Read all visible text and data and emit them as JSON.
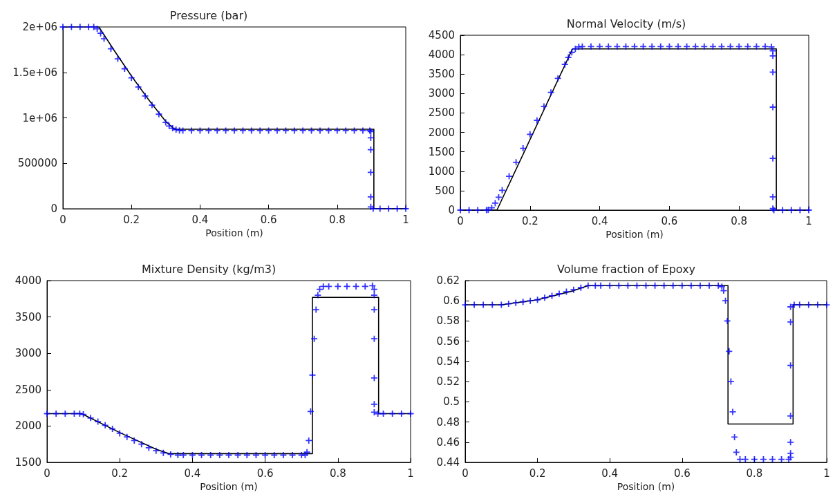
{
  "chart_data": [
    {
      "type": "line",
      "title": "Pressure (bar)",
      "xlabel": "Position (m)",
      "xlim": [
        0,
        1
      ],
      "xticks": [
        0,
        0.2,
        0.4,
        0.6,
        0.8,
        1
      ],
      "ylim": [
        0,
        2000000
      ],
      "yticks": [
        0,
        500000,
        {
          "value": 1000000,
          "label": "1e+06"
        },
        {
          "value": 1500000,
          "label": "1.5e+06"
        },
        {
          "value": 2000000,
          "label": "2e+06"
        }
      ],
      "grid": false,
      "series": [
        {
          "color": "#000000",
          "marker": "none",
          "line_style": "solid",
          "x": [
            0,
            0.105,
            0.15,
            0.2,
            0.25,
            0.3,
            0.325,
            0.907,
            0.907,
            1
          ],
          "values": [
            2000000,
            2000000,
            1740000,
            1460000,
            1200000,
            960000,
            875000,
            875000,
            0,
            0
          ]
        },
        {
          "type": "scatter",
          "color": "#0000ff",
          "marker": "cross",
          "x": [
            0,
            0.025,
            0.05,
            0.075,
            0.09,
            0.1,
            0.11,
            0.12,
            0.14,
            0.16,
            0.18,
            0.2,
            0.22,
            0.24,
            0.26,
            0.28,
            0.3,
            0.31,
            0.32,
            0.33,
            0.34,
            0.35,
            0.375,
            0.4,
            0.425,
            0.45,
            0.475,
            0.5,
            0.525,
            0.55,
            0.575,
            0.6,
            0.625,
            0.65,
            0.675,
            0.7,
            0.725,
            0.75,
            0.775,
            0.8,
            0.825,
            0.85,
            0.875,
            0.895,
            0.898,
            0.898,
            0.898,
            0.898,
            0.898,
            0.898,
            0.905,
            0.925,
            0.95,
            0.975,
            1
          ],
          "values": [
            2000000,
            2000000,
            2000000,
            2000000,
            2000000,
            1980000,
            1930000,
            1870000,
            1760000,
            1650000,
            1540000,
            1440000,
            1340000,
            1240000,
            1140000,
            1040000,
            950000,
            910000,
            885000,
            870000,
            862000,
            860000,
            860000,
            860000,
            860000,
            860000,
            860000,
            860000,
            860000,
            860000,
            860000,
            860000,
            860000,
            860000,
            860000,
            860000,
            860000,
            860000,
            860000,
            860000,
            860000,
            860000,
            860000,
            860000,
            850000,
            780000,
            650000,
            400000,
            130000,
            20000,
            0,
            0,
            0,
            0,
            0
          ]
        }
      ]
    },
    {
      "type": "line",
      "title": "Normal Velocity (m/s)",
      "xlabel": "Position (m)",
      "xlim": [
        0,
        1
      ],
      "xticks": [
        0,
        0.2,
        0.4,
        0.6,
        0.8,
        1
      ],
      "ylim": [
        0,
        4500
      ],
      "yticks": [
        0,
        500,
        1000,
        1500,
        2000,
        2500,
        3000,
        3500,
        4000,
        4500
      ],
      "grid": false,
      "series": [
        {
          "color": "#000000",
          "marker": "none",
          "line_style": "solid",
          "x": [
            0,
            0.105,
            0.322,
            0.907,
            0.907,
            1
          ],
          "values": [
            0,
            0,
            4150,
            4150,
            0,
            0
          ]
        },
        {
          "type": "scatter",
          "color": "#0000ff",
          "marker": "cross",
          "x": [
            0,
            0.025,
            0.05,
            0.075,
            0.08,
            0.09,
            0.1,
            0.11,
            0.12,
            0.14,
            0.16,
            0.18,
            0.2,
            0.22,
            0.24,
            0.26,
            0.28,
            0.3,
            0.31,
            0.32,
            0.33,
            0.34,
            0.35,
            0.375,
            0.4,
            0.425,
            0.45,
            0.475,
            0.5,
            0.525,
            0.55,
            0.575,
            0.6,
            0.625,
            0.65,
            0.675,
            0.7,
            0.725,
            0.75,
            0.775,
            0.8,
            0.825,
            0.85,
            0.875,
            0.893,
            0.897,
            0.897,
            0.897,
            0.897,
            0.897,
            0.897,
            0.897,
            0.9,
            0.925,
            0.95,
            0.975,
            1
          ],
          "values": [
            0,
            0,
            0,
            0,
            10,
            60,
            180,
            330,
            510,
            870,
            1230,
            1590,
            1950,
            2310,
            2670,
            3030,
            3390,
            3750,
            3930,
            4060,
            4150,
            4200,
            4210,
            4210,
            4210,
            4210,
            4210,
            4210,
            4210,
            4210,
            4210,
            4210,
            4210,
            4210,
            4210,
            4210,
            4210,
            4210,
            4210,
            4210,
            4210,
            4210,
            4210,
            4210,
            4200,
            4100,
            3970,
            3550,
            2650,
            1330,
            340,
            40,
            0,
            0,
            0,
            0,
            0
          ]
        }
      ]
    },
    {
      "type": "line",
      "title": "Mixture Density (kg/m3)",
      "xlabel": "Position (m)",
      "xlim": [
        0,
        1
      ],
      "xticks": [
        0,
        0.2,
        0.4,
        0.6,
        0.8,
        1
      ],
      "ylim": [
        1500,
        4000
      ],
      "yticks": [
        1500,
        2000,
        2500,
        3000,
        3500,
        4000
      ],
      "grid": false,
      "series": [
        {
          "color": "#000000",
          "marker": "none",
          "line_style": "solid",
          "x": [
            0,
            0.095,
            0.2,
            0.3,
            0.335,
            0.73,
            0.73,
            0.912,
            0.912,
            1
          ],
          "values": [
            2170,
            2170,
            1910,
            1680,
            1620,
            1620,
            3770,
            3770,
            2170,
            2170
          ]
        },
        {
          "type": "scatter",
          "color": "#0000ff",
          "marker": "cross",
          "x": [
            0,
            0.025,
            0.05,
            0.075,
            0.09,
            0.1,
            0.12,
            0.14,
            0.16,
            0.18,
            0.2,
            0.22,
            0.24,
            0.26,
            0.28,
            0.3,
            0.32,
            0.34,
            0.36,
            0.375,
            0.4,
            0.425,
            0.45,
            0.475,
            0.5,
            0.525,
            0.55,
            0.575,
            0.6,
            0.625,
            0.65,
            0.675,
            0.7,
            0.71,
            0.715,
            0.72,
            0.725,
            0.73,
            0.735,
            0.74,
            0.745,
            0.75,
            0.76,
            0.775,
            0.8,
            0.825,
            0.85,
            0.875,
            0.895,
            0.9,
            0.9,
            0.9,
            0.9,
            0.9,
            0.9,
            0.9,
            0.91,
            0.925,
            0.95,
            0.975,
            1
          ],
          "values": [
            2170,
            2170,
            2170,
            2170,
            2170,
            2160,
            2110,
            2060,
            2010,
            1960,
            1900,
            1850,
            1800,
            1750,
            1700,
            1660,
            1630,
            1610,
            1600,
            1600,
            1600,
            1600,
            1600,
            1600,
            1600,
            1600,
            1600,
            1600,
            1600,
            1600,
            1600,
            1600,
            1600,
            1600,
            1640,
            1800,
            2200,
            2700,
            3200,
            3600,
            3800,
            3880,
            3920,
            3920,
            3920,
            3920,
            3920,
            3920,
            3930,
            3880,
            3800,
            3600,
            3200,
            2660,
            2300,
            2190,
            2170,
            2170,
            2170,
            2170,
            2170
          ]
        }
      ]
    },
    {
      "type": "line",
      "title": "Volume fraction of Epoxy",
      "xlabel": "Position (m)",
      "xlim": [
        0,
        1
      ],
      "xticks": [
        0,
        0.2,
        0.4,
        0.6,
        0.8,
        1
      ],
      "ylim": [
        0.44,
        0.62
      ],
      "yticks": [
        0.44,
        0.46,
        0.48,
        0.5,
        0.52,
        0.54,
        0.56,
        0.58,
        0.6,
        0.62
      ],
      "grid": false,
      "series": [
        {
          "color": "#000000",
          "marker": "none",
          "line_style": "solid",
          "x": [
            0,
            0.1,
            0.2,
            0.3,
            0.34,
            0.727,
            0.727,
            0.907,
            0.907,
            1
          ],
          "values": [
            0.596,
            0.596,
            0.601,
            0.61,
            0.615,
            0.615,
            0.478,
            0.478,
            0.596,
            0.596
          ]
        },
        {
          "type": "scatter",
          "color": "#0000ff",
          "marker": "cross",
          "x": [
            0,
            0.025,
            0.05,
            0.075,
            0.1,
            0.12,
            0.14,
            0.16,
            0.18,
            0.2,
            0.22,
            0.24,
            0.26,
            0.28,
            0.3,
            0.32,
            0.34,
            0.36,
            0.375,
            0.4,
            0.425,
            0.45,
            0.475,
            0.5,
            0.525,
            0.55,
            0.575,
            0.6,
            0.625,
            0.65,
            0.675,
            0.7,
            0.71,
            0.715,
            0.72,
            0.725,
            0.73,
            0.735,
            0.74,
            0.745,
            0.75,
            0.76,
            0.775,
            0.8,
            0.825,
            0.85,
            0.875,
            0.895,
            0.9,
            0.9,
            0.9,
            0.9,
            0.9,
            0.9,
            0.9,
            0.91,
            0.925,
            0.95,
            0.975,
            1
          ],
          "values": [
            0.596,
            0.596,
            0.596,
            0.596,
            0.596,
            0.597,
            0.598,
            0.599,
            0.6,
            0.601,
            0.603,
            0.605,
            0.607,
            0.609,
            0.611,
            0.613,
            0.615,
            0.615,
            0.615,
            0.615,
            0.615,
            0.615,
            0.615,
            0.615,
            0.615,
            0.615,
            0.615,
            0.615,
            0.615,
            0.615,
            0.615,
            0.615,
            0.614,
            0.61,
            0.6,
            0.58,
            0.55,
            0.52,
            0.49,
            0.465,
            0.45,
            0.443,
            0.443,
            0.443,
            0.443,
            0.443,
            0.443,
            0.443,
            0.445,
            0.449,
            0.46,
            0.486,
            0.536,
            0.579,
            0.594,
            0.596,
            0.596,
            0.596,
            0.596,
            0.596
          ]
        }
      ]
    }
  ]
}
